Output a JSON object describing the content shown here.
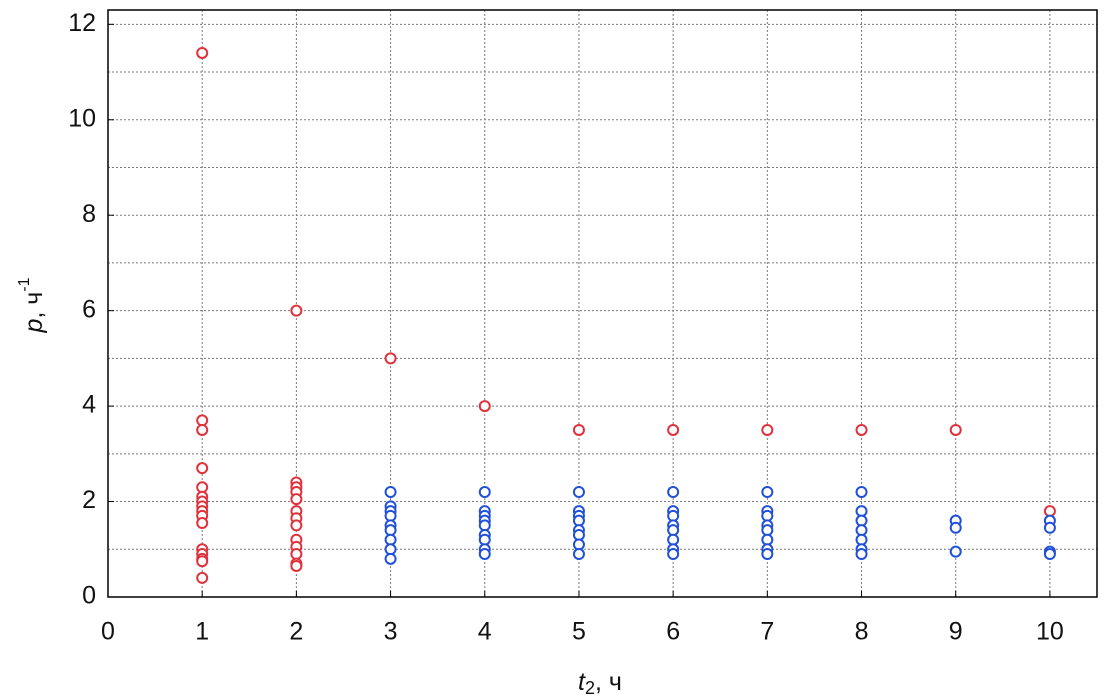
{
  "chart_data": {
    "type": "scatter",
    "xlabel": [
      "t",
      "2",
      ", ч"
    ],
    "ylabel": [
      "p",
      ", ч",
      "-1"
    ],
    "xlim": [
      0,
      10.5
    ],
    "ylim": [
      0,
      12.3
    ],
    "xticks": [
      0,
      1,
      2,
      3,
      4,
      5,
      6,
      7,
      8,
      9,
      10
    ],
    "yticks": [
      0,
      2,
      4,
      6,
      8,
      10,
      12
    ],
    "y_minor_ticks": [
      1,
      3,
      5,
      7,
      9,
      11
    ],
    "grid": true,
    "series": [
      {
        "color": "#e0323c",
        "x": [
          1,
          1,
          1,
          1,
          1,
          1,
          1,
          1,
          1,
          1,
          1,
          1,
          1,
          1,
          1,
          1,
          2,
          2,
          2,
          2,
          2,
          2,
          2,
          2,
          2,
          2,
          2,
          2,
          2,
          3,
          4,
          5,
          6,
          7,
          8,
          9,
          10
        ],
        "values": [
          11.4,
          3.7,
          3.5,
          2.7,
          2.3,
          2.1,
          2.0,
          1.9,
          1.8,
          1.7,
          1.55,
          1.0,
          0.9,
          0.8,
          0.75,
          0.4,
          6.0,
          2.4,
          2.3,
          2.2,
          2.05,
          1.8,
          1.65,
          1.5,
          1.2,
          1.05,
          0.9,
          0.7,
          0.65,
          5.0,
          4.0,
          3.5,
          3.5,
          3.5,
          3.5,
          3.5,
          1.8
        ]
      },
      {
        "color": "#2050d8",
        "x": [
          3,
          3,
          3,
          3,
          3,
          3,
          3,
          3,
          3,
          4,
          4,
          4,
          4,
          4,
          4,
          4,
          4,
          4,
          5,
          5,
          5,
          5,
          5,
          5,
          5,
          5,
          6,
          6,
          6,
          6,
          6,
          6,
          6,
          6,
          7,
          7,
          7,
          7,
          7,
          7,
          7,
          7,
          8,
          8,
          8,
          8,
          8,
          8,
          8,
          9,
          9,
          9,
          10,
          10,
          10,
          10
        ],
        "values": [
          2.2,
          1.9,
          1.8,
          1.7,
          1.5,
          1.4,
          1.2,
          1.0,
          0.8,
          2.2,
          1.8,
          1.7,
          1.6,
          1.5,
          1.3,
          1.2,
          1.0,
          0.9,
          2.2,
          1.8,
          1.7,
          1.6,
          1.4,
          1.3,
          1.1,
          0.9,
          2.2,
          1.8,
          1.7,
          1.5,
          1.4,
          1.2,
          1.0,
          0.9,
          2.2,
          1.8,
          1.7,
          1.5,
          1.4,
          1.2,
          1.0,
          0.9,
          2.2,
          1.8,
          1.6,
          1.4,
          1.2,
          1.0,
          0.9,
          1.6,
          1.45,
          0.95,
          1.6,
          1.45,
          0.95,
          0.9
        ]
      }
    ]
  }
}
